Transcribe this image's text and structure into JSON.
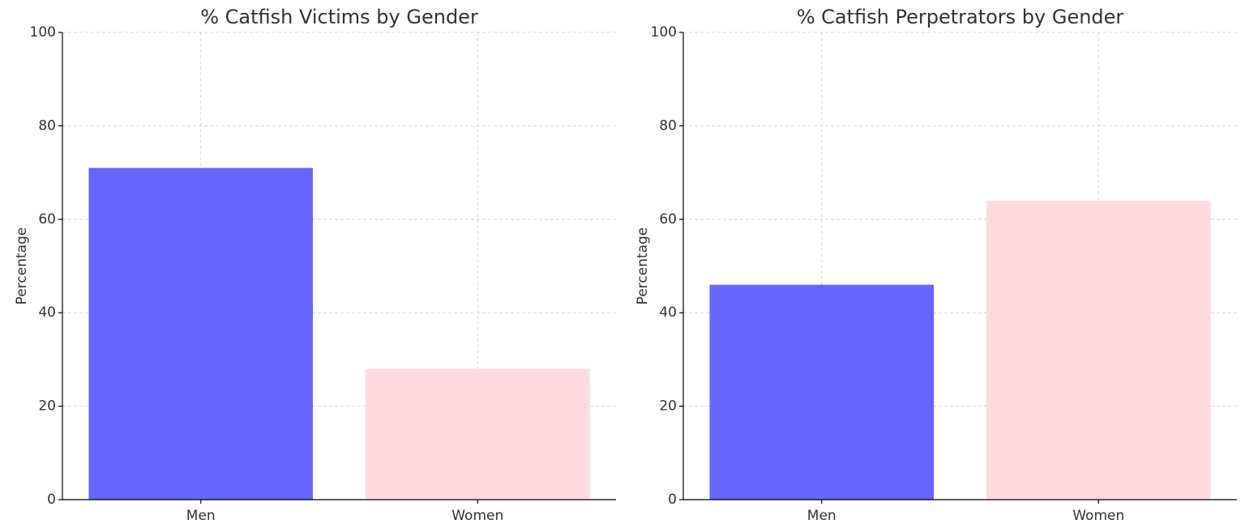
{
  "chart_data": [
    {
      "type": "bar",
      "title": "% Catfish Victims by Gender",
      "y_label": "Percentage",
      "categories": [
        "Men",
        "Women"
      ],
      "values": [
        71,
        28
      ],
      "colors": [
        "#6666ff",
        "#ffd9e0"
      ],
      "ylim": [
        0,
        100
      ],
      "yticks": [
        0,
        20,
        40,
        60,
        80,
        100
      ],
      "grid": true
    },
    {
      "type": "bar",
      "title": "% Catfish Perpetrators by Gender",
      "y_label": "Percentage",
      "categories": [
        "Men",
        "Women"
      ],
      "values": [
        46,
        64
      ],
      "colors": [
        "#6666ff",
        "#ffd9e0"
      ],
      "ylim": [
        0,
        100
      ],
      "yticks": [
        0,
        20,
        40,
        60,
        80,
        100
      ],
      "grid": true
    }
  ]
}
